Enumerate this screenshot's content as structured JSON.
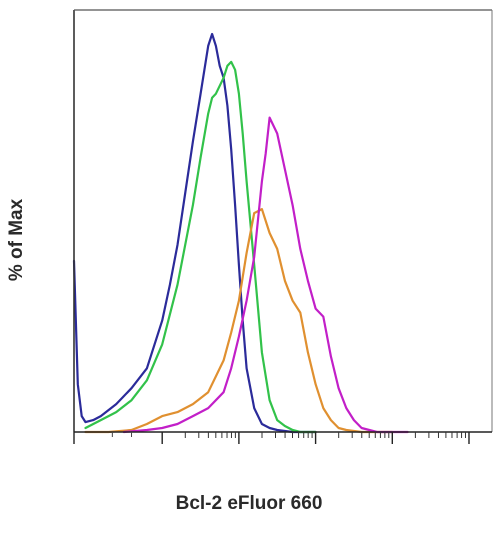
{
  "chart_data": {
    "type": "line",
    "subtype": "flow-cytometry-histogram",
    "xlabel": "Bcl-2 eFluor 660",
    "ylabel": "% of Max",
    "x_scale": "log (biexponential display)",
    "xlim": [
      -0.15,
      5.3
    ],
    "ylim": [
      0,
      100
    ],
    "grid": false,
    "legend": "none",
    "series": [
      {
        "color": "#2b2b9a",
        "x": [
          -0.15,
          -0.1,
          -0.05,
          0.0,
          0.1,
          0.2,
          0.4,
          0.6,
          0.8,
          1.0,
          1.1,
          1.2,
          1.3,
          1.4,
          1.5,
          1.55,
          1.6,
          1.65,
          1.7,
          1.75,
          1.8,
          1.85,
          1.9,
          1.95,
          2.0,
          2.05,
          2.1,
          2.2,
          2.3,
          2.4,
          2.5,
          2.7,
          3.0
        ],
        "y": [
          43,
          12,
          4,
          2.5,
          3,
          4,
          7,
          11,
          16,
          28,
          37,
          47,
          60,
          73,
          85,
          91,
          97,
          100,
          97,
          92,
          89,
          82,
          71,
          57,
          42,
          28,
          16,
          6,
          2,
          1,
          0.5,
          0,
          0
        ]
      },
      {
        "color": "#32c24a",
        "x": [
          0.0,
          0.2,
          0.4,
          0.6,
          0.8,
          1.0,
          1.2,
          1.4,
          1.5,
          1.6,
          1.65,
          1.7,
          1.8,
          1.85,
          1.9,
          1.95,
          2.0,
          2.05,
          2.1,
          2.2,
          2.3,
          2.4,
          2.5,
          2.6,
          2.7,
          2.8,
          3.0
        ],
        "y": [
          1,
          3,
          5,
          8,
          13,
          22,
          37,
          57,
          69,
          80,
          84,
          85,
          89,
          92,
          93,
          91,
          85,
          75,
          63,
          42,
          20,
          8,
          3,
          1.5,
          0.5,
          0,
          0
        ]
      },
      {
        "color": "#e09030",
        "x": [
          0.0,
          0.3,
          0.6,
          0.8,
          1.0,
          1.2,
          1.4,
          1.6,
          1.8,
          1.9,
          2.0,
          2.1,
          2.2,
          2.3,
          2.4,
          2.5,
          2.6,
          2.7,
          2.8,
          2.9,
          3.0,
          3.1,
          3.2,
          3.3,
          3.4,
          3.6,
          4.0
        ],
        "y": [
          0,
          0,
          0.5,
          2,
          4,
          5,
          7,
          10,
          18,
          25,
          33,
          45,
          55,
          56,
          50,
          46,
          38,
          33,
          30,
          20,
          12,
          6,
          3,
          1,
          0.5,
          0,
          0
        ]
      },
      {
        "color": "#c21fc8",
        "x": [
          0.5,
          0.8,
          1.0,
          1.2,
          1.4,
          1.6,
          1.8,
          1.9,
          2.0,
          2.1,
          2.2,
          2.3,
          2.35,
          2.4,
          2.5,
          2.6,
          2.7,
          2.8,
          2.9,
          3.0,
          3.1,
          3.2,
          3.3,
          3.4,
          3.5,
          3.6,
          3.8,
          4.2
        ],
        "y": [
          0,
          0.5,
          1,
          2,
          4,
          6,
          10,
          16,
          24,
          33,
          44,
          63,
          70,
          79,
          75,
          66,
          57,
          46,
          38,
          31,
          29,
          19,
          11,
          6,
          3,
          1,
          0,
          0
        ]
      }
    ],
    "x_ticks": {
      "major": [
        -0.15,
        1,
        2,
        3,
        4,
        5
      ],
      "minor_decades": [
        1,
        2,
        3,
        4
      ],
      "labels": []
    }
  }
}
